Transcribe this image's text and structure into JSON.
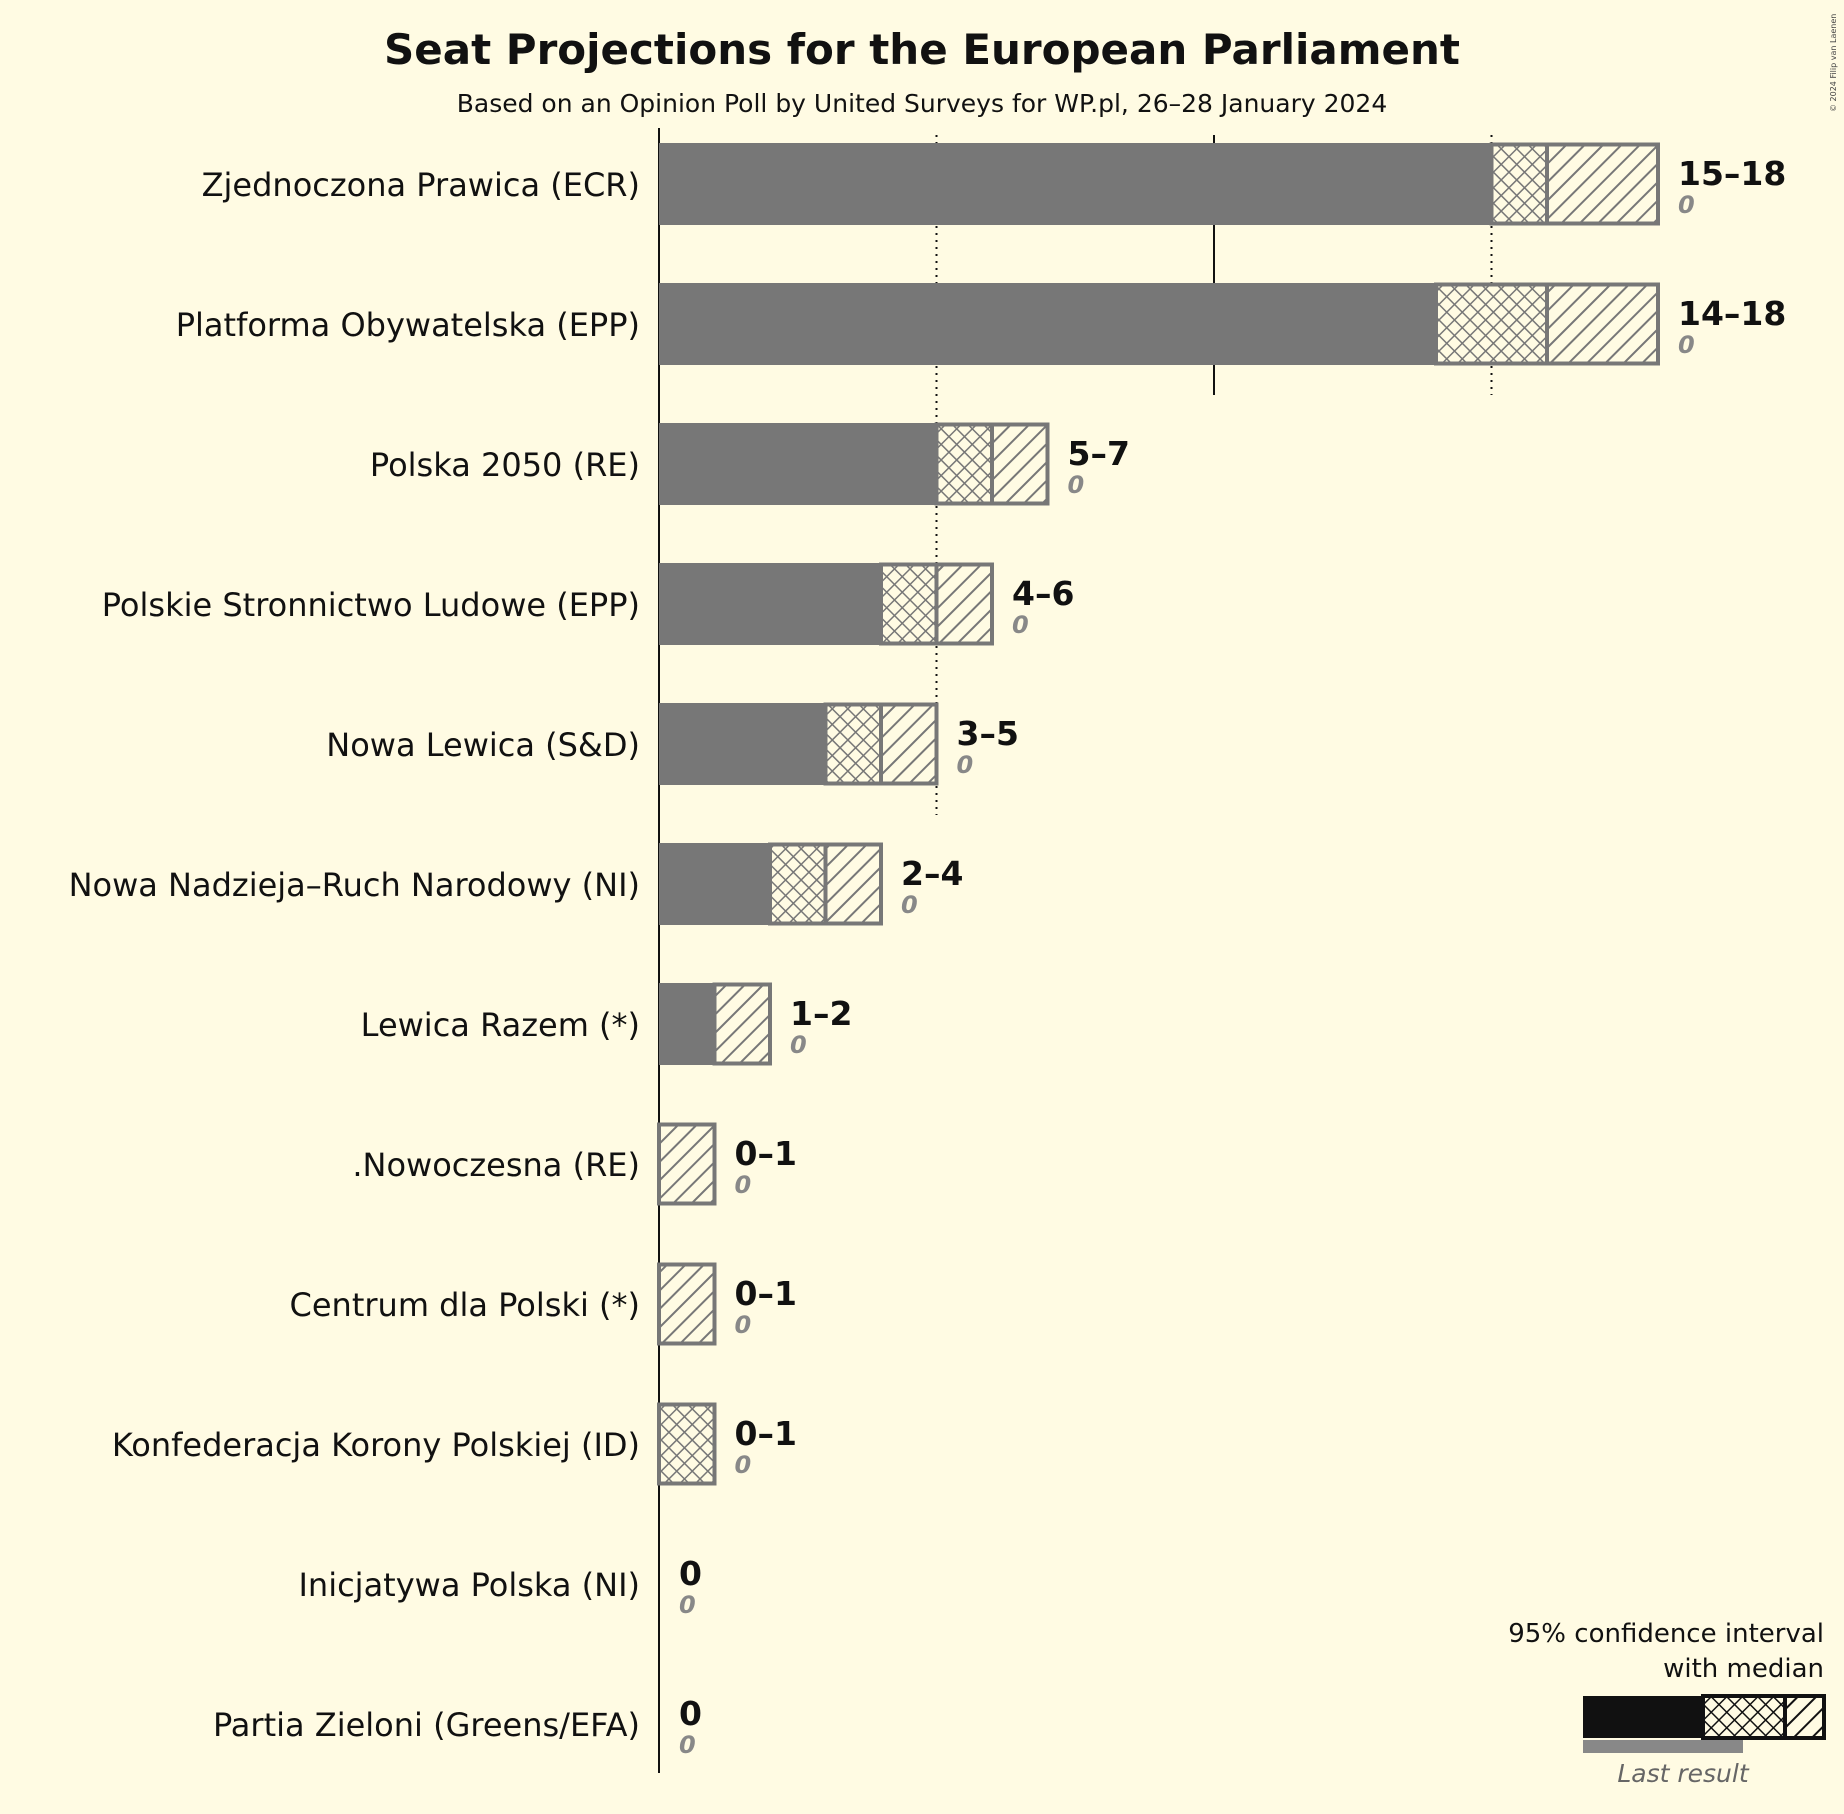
{
  "chart_data": {
    "type": "bar",
    "title": "Seat Projections for the European Parliament",
    "subtitle": "Based on an Opinion Poll by United Surveys for WP.pl, 26–28 January 2024",
    "copyright": "© 2024 Filip van Laenen",
    "orientation": "horizontal",
    "xlim": [
      0,
      18
    ],
    "gridlines": [
      5,
      10,
      15
    ],
    "parties": [
      {
        "name": "Zjednoczona Prawica (ECR)",
        "solid": 15,
        "median": 16,
        "high": 18,
        "range_label": "15–18",
        "last_result": "0"
      },
      {
        "name": "Platforma Obywatelska (EPP)",
        "solid": 14,
        "median": 16,
        "high": 18,
        "range_label": "14–18",
        "last_result": "0"
      },
      {
        "name": "Polska 2050 (RE)",
        "solid": 5,
        "median": 6,
        "high": 7,
        "range_label": "5–7",
        "last_result": "0"
      },
      {
        "name": "Polskie Stronnictwo Ludowe (EPP)",
        "solid": 4,
        "median": 5,
        "high": 6,
        "range_label": "4–6",
        "last_result": "0"
      },
      {
        "name": "Nowa Lewica (S&D)",
        "solid": 3,
        "median": 4,
        "high": 5,
        "range_label": "3–5",
        "last_result": "0"
      },
      {
        "name": "Nowa Nadzieja–Ruch Narodowy (NI)",
        "solid": 2,
        "median": 3,
        "high": 4,
        "range_label": "2–4",
        "last_result": "0"
      },
      {
        "name": "Lewica Razem (*)",
        "solid": 1,
        "median": 1,
        "high": 2,
        "range_label": "1–2",
        "last_result": "0"
      },
      {
        "name": ".Nowoczesna (RE)",
        "solid": 0,
        "median": 0,
        "high": 1,
        "range_label": "0–1",
        "last_result": "0"
      },
      {
        "name": "Centrum dla Polski (*)",
        "solid": 0,
        "median": 0,
        "high": 1,
        "range_label": "0–1",
        "last_result": "0"
      },
      {
        "name": "Konfederacja Korony Polskiej (ID)",
        "solid": 0,
        "median": 1,
        "high": 1,
        "range_label": "0–1",
        "last_result": "0"
      },
      {
        "name": "Inicjatywa Polska (NI)",
        "solid": 0,
        "median": 0,
        "high": 0,
        "range_label": "0",
        "last_result": "0"
      },
      {
        "name": "Partia Zieloni (Greens/EFA)",
        "solid": 0,
        "median": 0,
        "high": 0,
        "range_label": "0",
        "last_result": "0"
      }
    ],
    "legend": {
      "line1": "95% confidence interval",
      "line2": "with median",
      "last_result_label": "Last result"
    },
    "colors": {
      "background": "#fffbe3",
      "bar": "#777777",
      "bar_outline": "#777777",
      "legend_bar": "#111111",
      "last_result_bar": "#888888"
    }
  }
}
